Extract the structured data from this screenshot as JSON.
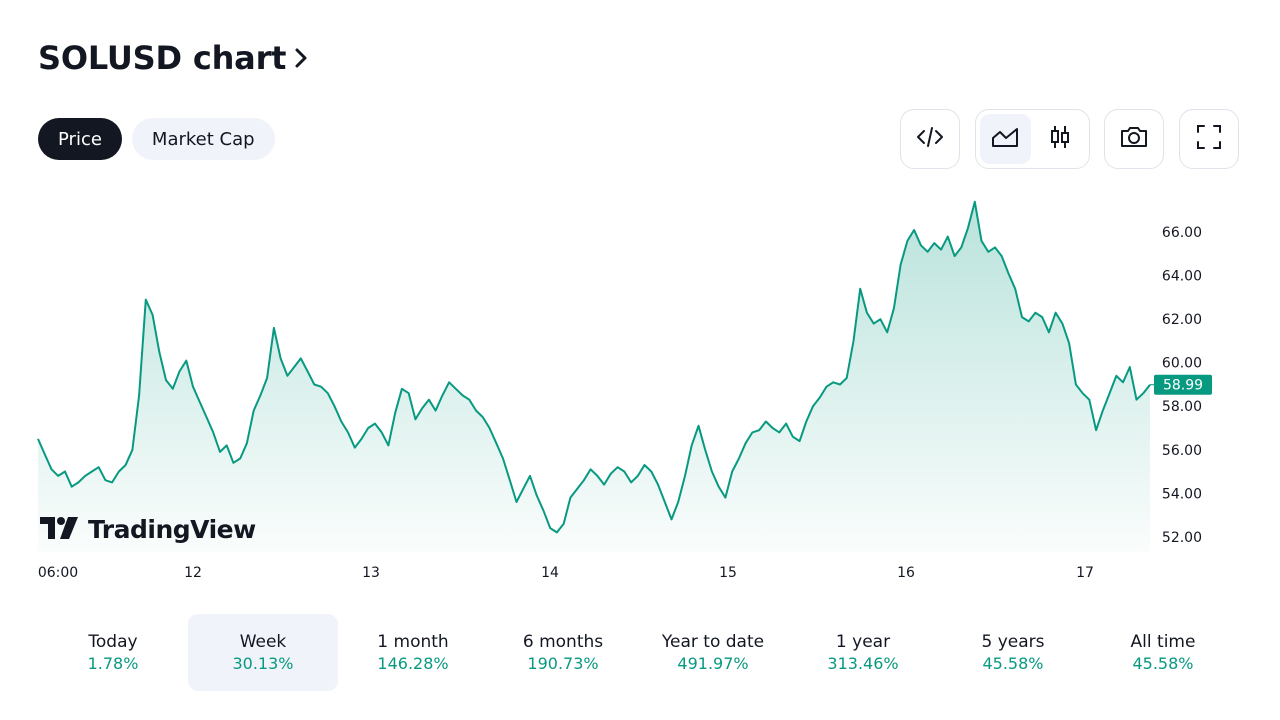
{
  "header": {
    "title": "SOLUSD chart",
    "chevron_icon": "chevron-right-icon"
  },
  "tabs": [
    {
      "label": "Price",
      "active": true
    },
    {
      "label": "Market Cap",
      "active": false
    }
  ],
  "toolbar": {
    "embed_icon": "code-icon",
    "area_icon": "area-chart-icon",
    "candles_icon": "candlestick-icon",
    "snapshot_icon": "camera-icon",
    "fullscreen_icon": "fullscreen-icon",
    "chart_style_selected": "area"
  },
  "watermark": {
    "text": "TradingView",
    "logo_icon": "tradingview-logo-icon"
  },
  "chart_data": {
    "type": "area",
    "symbol": "SOLUSD",
    "x_tick_labels": [
      "06:00",
      "12",
      "13",
      "14",
      "15",
      "16",
      "17"
    ],
    "y_tick_labels": [
      "52.00",
      "54.00",
      "56.00",
      "58.00",
      "60.00",
      "62.00",
      "64.00",
      "66.00"
    ],
    "ylim": [
      51.3,
      68.4
    ],
    "last_value": 58.99,
    "last_value_label": "58.99",
    "line_color": "#089981",
    "series": [
      {
        "values": [
          56.5,
          55.8,
          55.1,
          54.8,
          55.0,
          54.3,
          54.5,
          54.8,
          55.0,
          55.2,
          54.6,
          54.5,
          55.0,
          55.3,
          56.0,
          58.5,
          62.9,
          62.2,
          60.5,
          59.2,
          58.8,
          59.6,
          60.1,
          58.9,
          58.2,
          57.5,
          56.8,
          55.9,
          56.2,
          55.4,
          55.6,
          56.3,
          57.8,
          58.5,
          59.3,
          61.6,
          60.2,
          59.4,
          59.8,
          60.2,
          59.6,
          59.0,
          58.9,
          58.6,
          58.0,
          57.3,
          56.8,
          56.1,
          56.5,
          57.0,
          57.2,
          56.8,
          56.2,
          57.7,
          58.8,
          58.6,
          57.4,
          57.9,
          58.3,
          57.8,
          58.5,
          59.1,
          58.8,
          58.5,
          58.3,
          57.8,
          57.5,
          57.0,
          56.3,
          55.6,
          54.6,
          53.6,
          54.2,
          54.8,
          53.9,
          53.2,
          52.4,
          52.2,
          52.6,
          53.8,
          54.2,
          54.6,
          55.1,
          54.8,
          54.4,
          54.9,
          55.2,
          55.0,
          54.5,
          54.8,
          55.3,
          55.0,
          54.4,
          53.6,
          52.8,
          53.6,
          54.8,
          56.2,
          57.1,
          56.0,
          55.0,
          54.3,
          53.8,
          55.0,
          55.6,
          56.3,
          56.8,
          56.9,
          57.3,
          57.0,
          56.8,
          57.2,
          56.6,
          56.4,
          57.3,
          58.0,
          58.4,
          58.9,
          59.1,
          59.0,
          59.3,
          61.0,
          63.4,
          62.3,
          61.8,
          62.0,
          61.4,
          62.5,
          64.5,
          65.6,
          66.1,
          65.4,
          65.1,
          65.5,
          65.2,
          65.8,
          64.9,
          65.3,
          66.2,
          67.4,
          65.6,
          65.1,
          65.3,
          64.9,
          64.1,
          63.4,
          62.1,
          61.9,
          62.3,
          62.1,
          61.4,
          62.3,
          61.8,
          60.9,
          59.0,
          58.6,
          58.3,
          56.9,
          57.8,
          58.6,
          59.4,
          59.1,
          59.8,
          58.3,
          58.6,
          58.99
        ]
      }
    ],
    "grid": false,
    "fill": "gradient"
  },
  "periods": [
    {
      "label": "Today",
      "change": "1.78%",
      "active": false
    },
    {
      "label": "Week",
      "change": "30.13%",
      "active": true
    },
    {
      "label": "1 month",
      "change": "146.28%",
      "active": false
    },
    {
      "label": "6 months",
      "change": "190.73%",
      "active": false
    },
    {
      "label": "Year to date",
      "change": "491.97%",
      "active": false
    },
    {
      "label": "1 year",
      "change": "313.46%",
      "active": false
    },
    {
      "label": "5 years",
      "change": "45.58%",
      "active": false
    },
    {
      "label": "All time",
      "change": "45.58%",
      "active": false
    }
  ]
}
